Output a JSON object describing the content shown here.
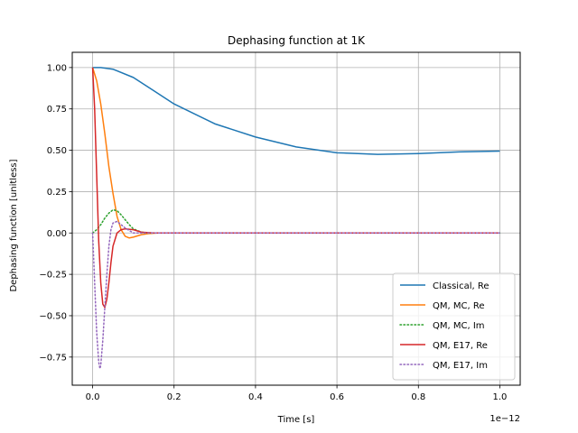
{
  "chart_data": {
    "type": "line",
    "title": "Dephasing function at 1K",
    "xlabel": "Time [s]",
    "ylabel": "Dephasing function [unitless]",
    "x_offset_text": "1e−12",
    "x_scale": 1e-12,
    "xlim": [
      -5e-14,
      1.05e-12
    ],
    "ylim": [
      -0.92,
      1.092
    ],
    "x_ticks": [
      0,
      2e-13,
      4e-13,
      6e-13,
      8e-13,
      1e-12
    ],
    "x_tick_labels": [
      "0.0",
      "0.2",
      "0.4",
      "0.6",
      "0.8",
      "1.0"
    ],
    "y_ticks": [
      -0.75,
      -0.5,
      -0.25,
      0,
      0.25,
      0.5,
      0.75,
      1.0
    ],
    "y_tick_labels": [
      "−0.75",
      "−0.50",
      "−0.25",
      "0.00",
      "0.25",
      "0.50",
      "0.75",
      "1.00"
    ],
    "grid": true,
    "legend_position": "lower-right",
    "series": [
      {
        "name": "Classical, Re",
        "color": "#1f77b4",
        "style": "solid",
        "x": [
          0,
          2e-14,
          5e-14,
          1e-13,
          1.5e-13,
          2e-13,
          3e-13,
          4e-13,
          5e-13,
          6e-13,
          7e-13,
          8e-13,
          9e-13,
          1e-12
        ],
        "y": [
          1.0,
          1.0,
          0.99,
          0.94,
          0.86,
          0.78,
          0.66,
          0.58,
          0.52,
          0.485,
          0.475,
          0.48,
          0.49,
          0.495
        ]
      },
      {
        "name": "QM, MC, Re",
        "color": "#ff7f0e",
        "style": "solid",
        "x": [
          0,
          1e-14,
          2e-14,
          3e-14,
          4e-14,
          5e-14,
          6e-14,
          7e-14,
          8e-14,
          9e-14,
          1e-13,
          1.2e-13,
          1.4e-13,
          1.6e-13,
          2e-13,
          1e-12
        ],
        "y": [
          1.0,
          0.92,
          0.78,
          0.6,
          0.4,
          0.24,
          0.1,
          0.02,
          -0.02,
          -0.03,
          -0.025,
          -0.01,
          -0.003,
          0.0,
          0.0,
          0.0
        ]
      },
      {
        "name": "QM, MC, Im",
        "color": "#2ca02c",
        "style": "dotted",
        "x": [
          0,
          1e-14,
          2e-14,
          3e-14,
          4e-14,
          5e-14,
          6e-14,
          7e-14,
          8e-14,
          9e-14,
          1e-13,
          1.2e-13,
          1.4e-13,
          1.6e-13,
          1e-12
        ],
        "y": [
          0.0,
          0.02,
          0.05,
          0.09,
          0.12,
          0.14,
          0.135,
          0.11,
          0.08,
          0.05,
          0.025,
          0.005,
          0.0,
          0.0,
          0.0
        ]
      },
      {
        "name": "QM, E17, Re",
        "color": "#d62728",
        "style": "solid",
        "x": [
          0,
          5e-15,
          1e-14,
          1.5e-14,
          2e-14,
          2.5e-14,
          3e-14,
          3.5e-14,
          4e-14,
          4.5e-14,
          5e-14,
          6e-14,
          7e-14,
          8e-14,
          1e-13,
          1.2e-13,
          1.5e-13,
          1e-12
        ],
        "y": [
          1.0,
          0.75,
          0.35,
          -0.05,
          -0.3,
          -0.43,
          -0.45,
          -0.4,
          -0.3,
          -0.18,
          -0.08,
          0.0,
          0.02,
          0.025,
          0.02,
          0.005,
          0.0,
          0.0
        ]
      },
      {
        "name": "QM, E17, Im",
        "color": "#9467bd",
        "style": "dotted",
        "x": [
          0,
          5e-15,
          1e-14,
          1.5e-14,
          1.8e-14,
          2e-14,
          2.5e-14,
          3e-14,
          3.5e-14,
          4e-14,
          4.5e-14,
          5e-14,
          6e-14,
          7e-14,
          8e-14,
          1e-13,
          1e-12
        ],
        "y": [
          0.0,
          -0.3,
          -0.6,
          -0.78,
          -0.82,
          -0.8,
          -0.65,
          -0.45,
          -0.25,
          -0.08,
          0.02,
          0.06,
          0.07,
          0.05,
          0.03,
          0.0,
          0.0
        ]
      }
    ]
  }
}
